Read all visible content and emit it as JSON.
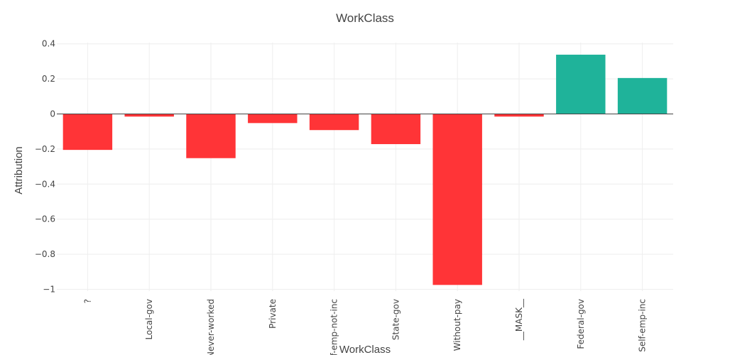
{
  "chart_data": {
    "type": "bar",
    "title": "WorkClass",
    "xlabel": "WorkClass",
    "ylabel": "Attribution",
    "categories": [
      "?",
      "Local-gov",
      "Never-worked",
      "Private",
      "Self-emp-not-inc",
      "State-gov",
      "Without-pay",
      "__MASK__",
      "Federal-gov",
      "Self-emp-inc"
    ],
    "values": [
      -0.205,
      -0.015,
      -0.252,
      -0.052,
      -0.092,
      -0.172,
      -0.975,
      -0.015,
      0.338,
      0.205
    ],
    "ylim": [
      -1.05,
      0.4
    ],
    "yticks": [
      0.4,
      0.2,
      0,
      -0.2,
      -0.4,
      -0.6,
      -0.8,
      -1
    ],
    "ytick_labels": [
      "0.4",
      "0.2",
      "0",
      "−0.2",
      "−0.4",
      "−0.6",
      "−0.8",
      "−1"
    ],
    "grid": true,
    "colors": {
      "positive": "#1fb39a",
      "negative": "#ff3437"
    }
  }
}
